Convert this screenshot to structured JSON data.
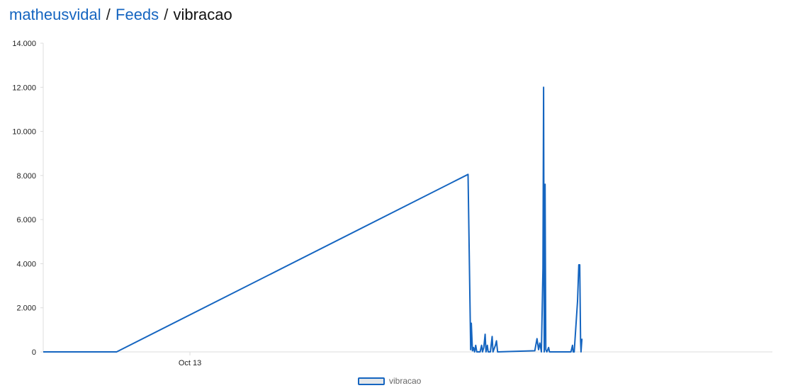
{
  "breadcrumb": {
    "user": "matheusvidal",
    "separator": "/",
    "feeds": "Feeds",
    "feed": "vibracao"
  },
  "colors": {
    "link": "#1565c0",
    "series": "#1565c0",
    "axis": "#dddddd"
  },
  "chart_data": {
    "type": "line",
    "title": "",
    "xlabel": "",
    "ylabel": "",
    "x_axis": {
      "type": "time",
      "range_days": [
        -6.7,
        26.6
      ],
      "tick_labels": [
        {
          "label": "Oct 13",
          "day": 0
        }
      ]
    },
    "ylim": [
      0,
      14000
    ],
    "y_ticks": [
      0,
      2000,
      4000,
      6000,
      8000,
      10000,
      12000,
      14000
    ],
    "y_tick_labels": [
      "0",
      "2.000",
      "4.000",
      "6.000",
      "8.000",
      "10.000",
      "12.000",
      "14.000"
    ],
    "grid": false,
    "legend": {
      "position": "bottom-center",
      "entries": [
        "vibracao"
      ]
    },
    "series": [
      {
        "name": "vibracao",
        "color": "#1565c0",
        "points": [
          [
            -6.7,
            0
          ],
          [
            -3.35,
            0
          ],
          [
            12.7,
            8050
          ],
          [
            12.82,
            100
          ],
          [
            12.85,
            1300
          ],
          [
            12.9,
            50
          ],
          [
            12.95,
            200
          ],
          [
            13.0,
            0
          ],
          [
            13.05,
            300
          ],
          [
            13.1,
            0
          ],
          [
            13.25,
            0
          ],
          [
            13.32,
            300
          ],
          [
            13.36,
            0
          ],
          [
            13.42,
            200
          ],
          [
            13.48,
            800
          ],
          [
            13.52,
            0
          ],
          [
            13.58,
            300
          ],
          [
            13.62,
            0
          ],
          [
            13.72,
            0
          ],
          [
            13.8,
            700
          ],
          [
            13.84,
            0
          ],
          [
            13.95,
            300
          ],
          [
            14.0,
            500
          ],
          [
            14.05,
            0
          ],
          [
            15.75,
            50
          ],
          [
            15.85,
            600
          ],
          [
            15.92,
            100
          ],
          [
            15.98,
            400
          ],
          [
            16.05,
            0
          ],
          [
            16.12,
            3800
          ],
          [
            16.15,
            12000
          ],
          [
            16.18,
            0
          ],
          [
            16.22,
            7600
          ],
          [
            16.25,
            100
          ],
          [
            16.3,
            0
          ],
          [
            16.38,
            200
          ],
          [
            16.42,
            0
          ],
          [
            17.4,
            0
          ],
          [
            17.47,
            300
          ],
          [
            17.5,
            0
          ],
          [
            17.55,
            0
          ],
          [
            17.7,
            2300
          ],
          [
            17.76,
            3950
          ],
          [
            17.8,
            3950
          ],
          [
            17.84,
            500
          ],
          [
            17.86,
            0
          ],
          [
            17.9,
            600
          ]
        ]
      }
    ]
  }
}
